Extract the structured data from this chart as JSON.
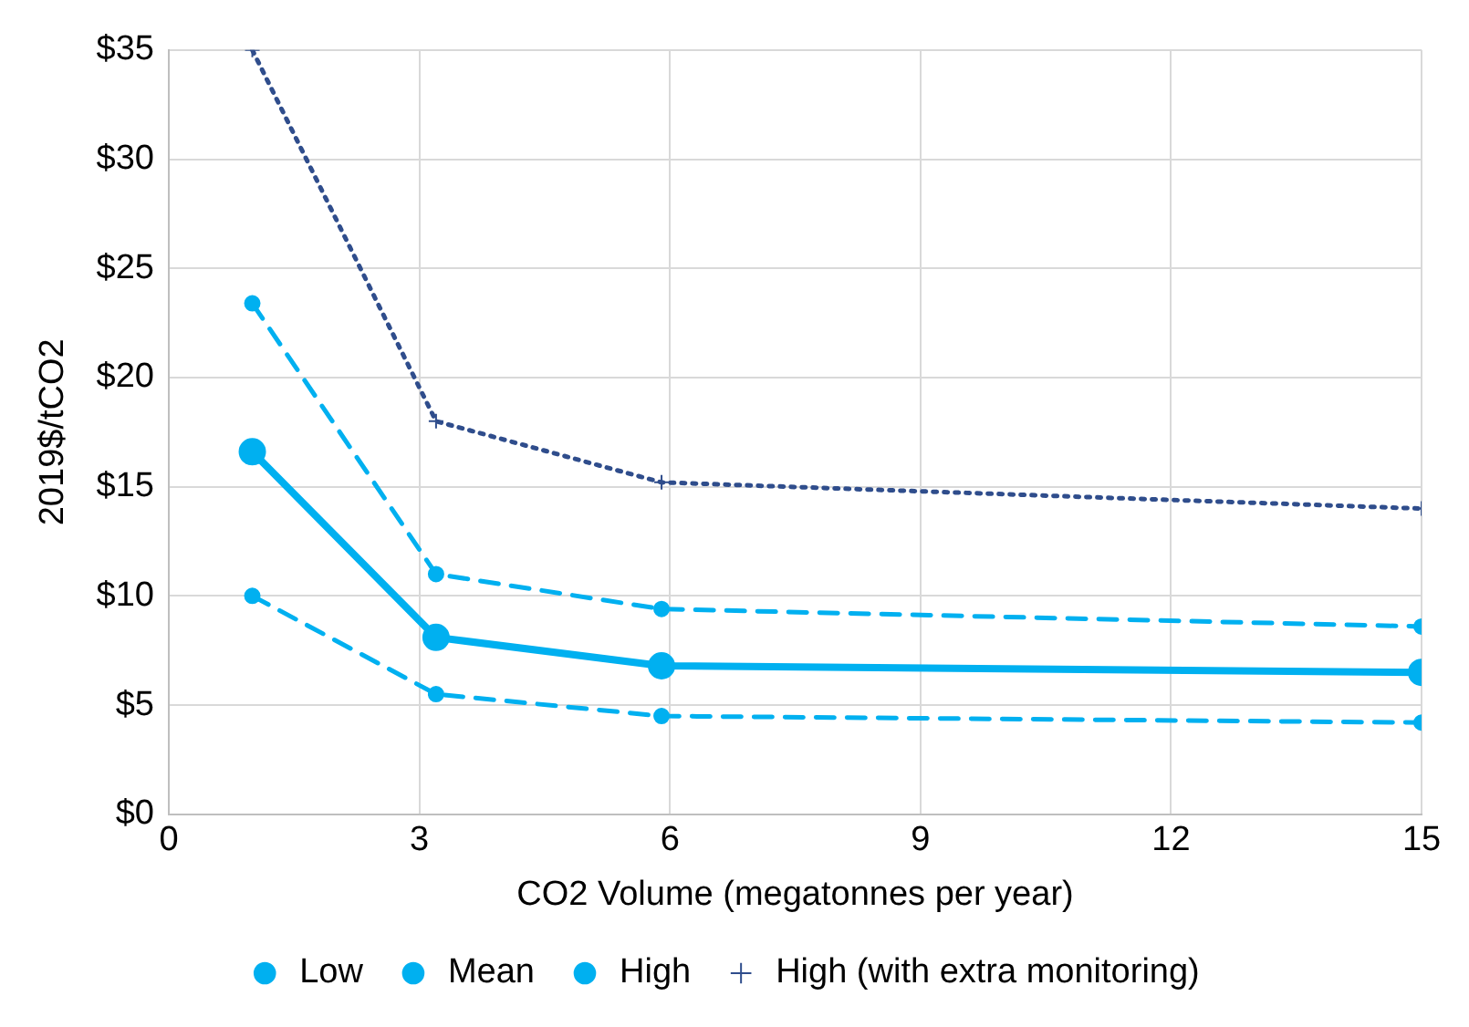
{
  "chart_data": {
    "type": "line",
    "xlabel": "CO2 Volume (megatonnes per year)",
    "ylabel": "2019$/tCO2",
    "x": [
      1,
      3.2,
      5.9,
      15
    ],
    "series": [
      {
        "name": "Low",
        "color": "#00b0f0",
        "values": [
          10,
          5.5,
          4.5,
          4.2
        ],
        "line_style": "dashed",
        "marker": "circle"
      },
      {
        "name": "Mean",
        "color": "#00b0f0",
        "values": [
          16.6,
          8.1,
          6.8,
          6.5
        ],
        "line_style": "solid",
        "marker": "circle"
      },
      {
        "name": "High",
        "color": "#00b0f0",
        "values": [
          23.4,
          11,
          9.4,
          8.6
        ],
        "line_style": "dashed",
        "marker": "circle"
      },
      {
        "name": "High (with extra monitoring)",
        "color": "#2f4d8c",
        "values": [
          35,
          18,
          15.2,
          14
        ],
        "line_style": "dotted",
        "marker": "cross"
      }
    ],
    "xlim": [
      0,
      15
    ],
    "xticks": [
      0,
      3,
      6,
      9,
      12,
      15
    ],
    "ylim": [
      0,
      35
    ],
    "yticks": [
      {
        "value": 0,
        "label": "$0"
      },
      {
        "value": 5,
        "label": "$5"
      },
      {
        "value": 10,
        "label": "$10"
      },
      {
        "value": 15,
        "label": "$15"
      },
      {
        "value": 20,
        "label": "$20"
      },
      {
        "value": 25,
        "label": "$25"
      },
      {
        "value": 30,
        "label": "$30"
      },
      {
        "value": 35,
        "label": "$35"
      }
    ],
    "grid": true,
    "legend": "bottom"
  }
}
